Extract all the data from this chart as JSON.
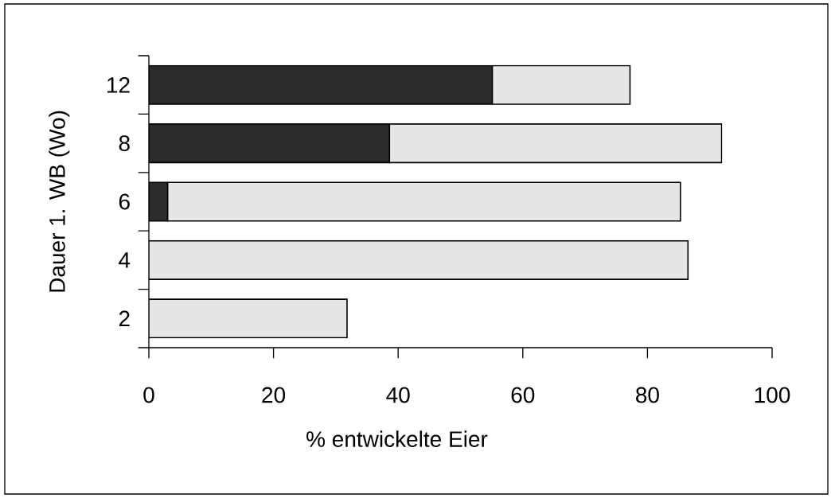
{
  "chart_data": {
    "type": "bar",
    "orientation": "horizontal",
    "stacked": true,
    "xlabel": "% entwickelte Eier",
    "ylabel": "Dauer 1. WB (Wo)",
    "categories": [
      "12",
      "8",
      "6",
      "4",
      "2"
    ],
    "series": [
      {
        "color": "#2b2b2b",
        "values": [
          55.1,
          38.6,
          3.0,
          null,
          null
        ]
      },
      {
        "color": "#e6e6e6",
        "values": [
          22.1,
          53.3,
          82.3,
          86.5,
          31.8
        ]
      }
    ],
    "xlim": [
      0,
      100
    ],
    "xticks": [
      0,
      20,
      40,
      60,
      80,
      100
    ],
    "grid": false
  }
}
